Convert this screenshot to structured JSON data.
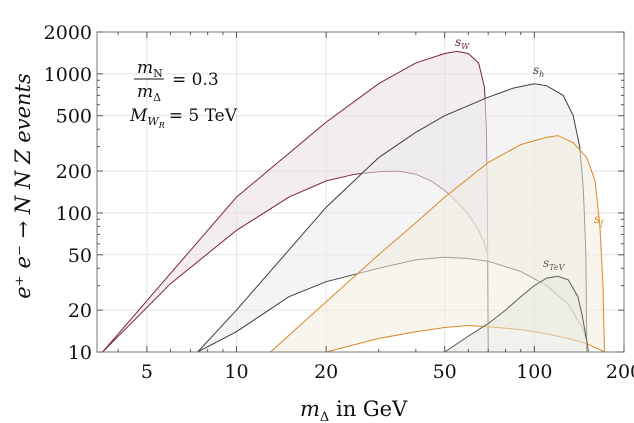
{
  "chart_data": {
    "type": "area",
    "title": "",
    "xlabel_main": "m",
    "xlabel_sub": "Δ",
    "xlabel_rest": " in GeV",
    "ylabel": "e⁺ e⁻ → N N Z events",
    "x_scale": "log",
    "y_scale": "log",
    "xlim": [
      3.4,
      200
    ],
    "ylim": [
      10,
      2000
    ],
    "x_ticks": [
      {
        "value": 5,
        "label": "5"
      },
      {
        "value": 10,
        "label": "10"
      },
      {
        "value": 20,
        "label": "20"
      },
      {
        "value": 50,
        "label": "50"
      },
      {
        "value": 100,
        "label": "100"
      },
      {
        "value": 200,
        "label": "200"
      }
    ],
    "y_ticks": [
      {
        "value": 10,
        "label": "10"
      },
      {
        "value": 20,
        "label": "20"
      },
      {
        "value": 50,
        "label": "50"
      },
      {
        "value": 100,
        "label": "100"
      },
      {
        "value": 200,
        "label": "200"
      },
      {
        "value": 500,
        "label": "500"
      },
      {
        "value": 1000,
        "label": "1000"
      },
      {
        "value": 2000,
        "label": "2000"
      }
    ],
    "grid": true,
    "annotation": {
      "ratio_num_main": "m",
      "ratio_num_sub": "N",
      "ratio_den_main": "m",
      "ratio_den_sub": "Δ",
      "ratio_value": "= 0.3",
      "mass_main": "M",
      "mass_sub": "W",
      "mass_subsub": "R",
      "mass_value": "= 5 TeV"
    },
    "series": [
      {
        "name": "s_W",
        "label_main": "s",
        "label_sub": "W",
        "color": "#7a2535",
        "fill": "#e9dee1",
        "upper": [
          [
            3.55,
            10
          ],
          [
            10,
            130
          ],
          [
            20,
            450
          ],
          [
            30,
            850
          ],
          [
            40,
            1200
          ],
          [
            50,
            1400
          ],
          [
            55,
            1450
          ],
          [
            60,
            1400
          ],
          [
            65,
            1200
          ],
          [
            68,
            800
          ],
          [
            69,
            400
          ],
          [
            69.6,
            100
          ],
          [
            70,
            10
          ]
        ],
        "lower": [
          [
            3.55,
            10
          ],
          [
            6,
            31
          ],
          [
            10,
            75
          ],
          [
            15,
            130
          ],
          [
            20,
            170
          ],
          [
            25,
            190
          ],
          [
            30,
            198
          ],
          [
            35,
            200
          ],
          [
            40,
            190
          ],
          [
            45,
            170
          ],
          [
            50,
            145
          ],
          [
            55,
            120
          ],
          [
            60,
            98
          ],
          [
            65,
            75
          ],
          [
            68,
            60
          ],
          [
            69,
            52
          ]
        ]
      },
      {
        "name": "s_h",
        "label_main": "s",
        "label_sub": "h",
        "color": "#3f3f3f",
        "fill": "#ebebef",
        "upper": [
          [
            7.4,
            10
          ],
          [
            10,
            20
          ],
          [
            20,
            110
          ],
          [
            30,
            250
          ],
          [
            40,
            380
          ],
          [
            50,
            500
          ],
          [
            70,
            680
          ],
          [
            85,
            790
          ],
          [
            100,
            850
          ],
          [
            110,
            820
          ],
          [
            125,
            700
          ],
          [
            135,
            500
          ],
          [
            142,
            300
          ],
          [
            146,
            150
          ],
          [
            149,
            50
          ],
          [
            150,
            10
          ]
        ],
        "lower": [
          [
            7.4,
            10
          ],
          [
            10,
            14
          ],
          [
            15,
            25
          ],
          [
            20,
            32
          ],
          [
            30,
            40
          ],
          [
            40,
            46
          ],
          [
            50,
            48
          ],
          [
            60,
            47
          ],
          [
            70,
            45
          ],
          [
            90,
            38
          ],
          [
            110,
            30
          ],
          [
            130,
            22
          ],
          [
            145,
            15
          ],
          [
            150,
            12
          ]
        ]
      },
      {
        "name": "s_f",
        "label_main": "s",
        "label_sub": "f",
        "color": "#d98a24",
        "fill": "#f3ede0",
        "upper": [
          [
            13,
            10
          ],
          [
            20,
            23
          ],
          [
            30,
            50
          ],
          [
            40,
            85
          ],
          [
            50,
            130
          ],
          [
            70,
            230
          ],
          [
            90,
            310
          ],
          [
            110,
            350
          ],
          [
            120,
            360
          ],
          [
            135,
            320
          ],
          [
            150,
            250
          ],
          [
            160,
            170
          ],
          [
            166,
            80
          ],
          [
            170,
            30
          ],
          [
            172,
            10
          ]
        ],
        "lower": [
          [
            20,
            10
          ],
          [
            30,
            12.5
          ],
          [
            40,
            14
          ],
          [
            50,
            15
          ],
          [
            60,
            15.5
          ],
          [
            70,
            15.2
          ],
          [
            90,
            14.5
          ],
          [
            110,
            13.5
          ],
          [
            130,
            12.5
          ],
          [
            150,
            11.5
          ],
          [
            172,
            10
          ]
        ]
      },
      {
        "name": "s_TeV",
        "label_main": "s",
        "label_sub": "TeV",
        "color": "#5a6445",
        "fill": "#e6e7de",
        "upper": [
          [
            50,
            10
          ],
          [
            60,
            13
          ],
          [
            70,
            16
          ],
          [
            80,
            20
          ],
          [
            90,
            25
          ],
          [
            100,
            30
          ],
          [
            110,
            34
          ],
          [
            120,
            35
          ],
          [
            130,
            33
          ],
          [
            140,
            25
          ],
          [
            145,
            18
          ],
          [
            150,
            12
          ],
          [
            152,
            10
          ]
        ],
        "lower": [
          [
            50,
            10
          ],
          [
            152,
            10
          ]
        ]
      }
    ]
  }
}
